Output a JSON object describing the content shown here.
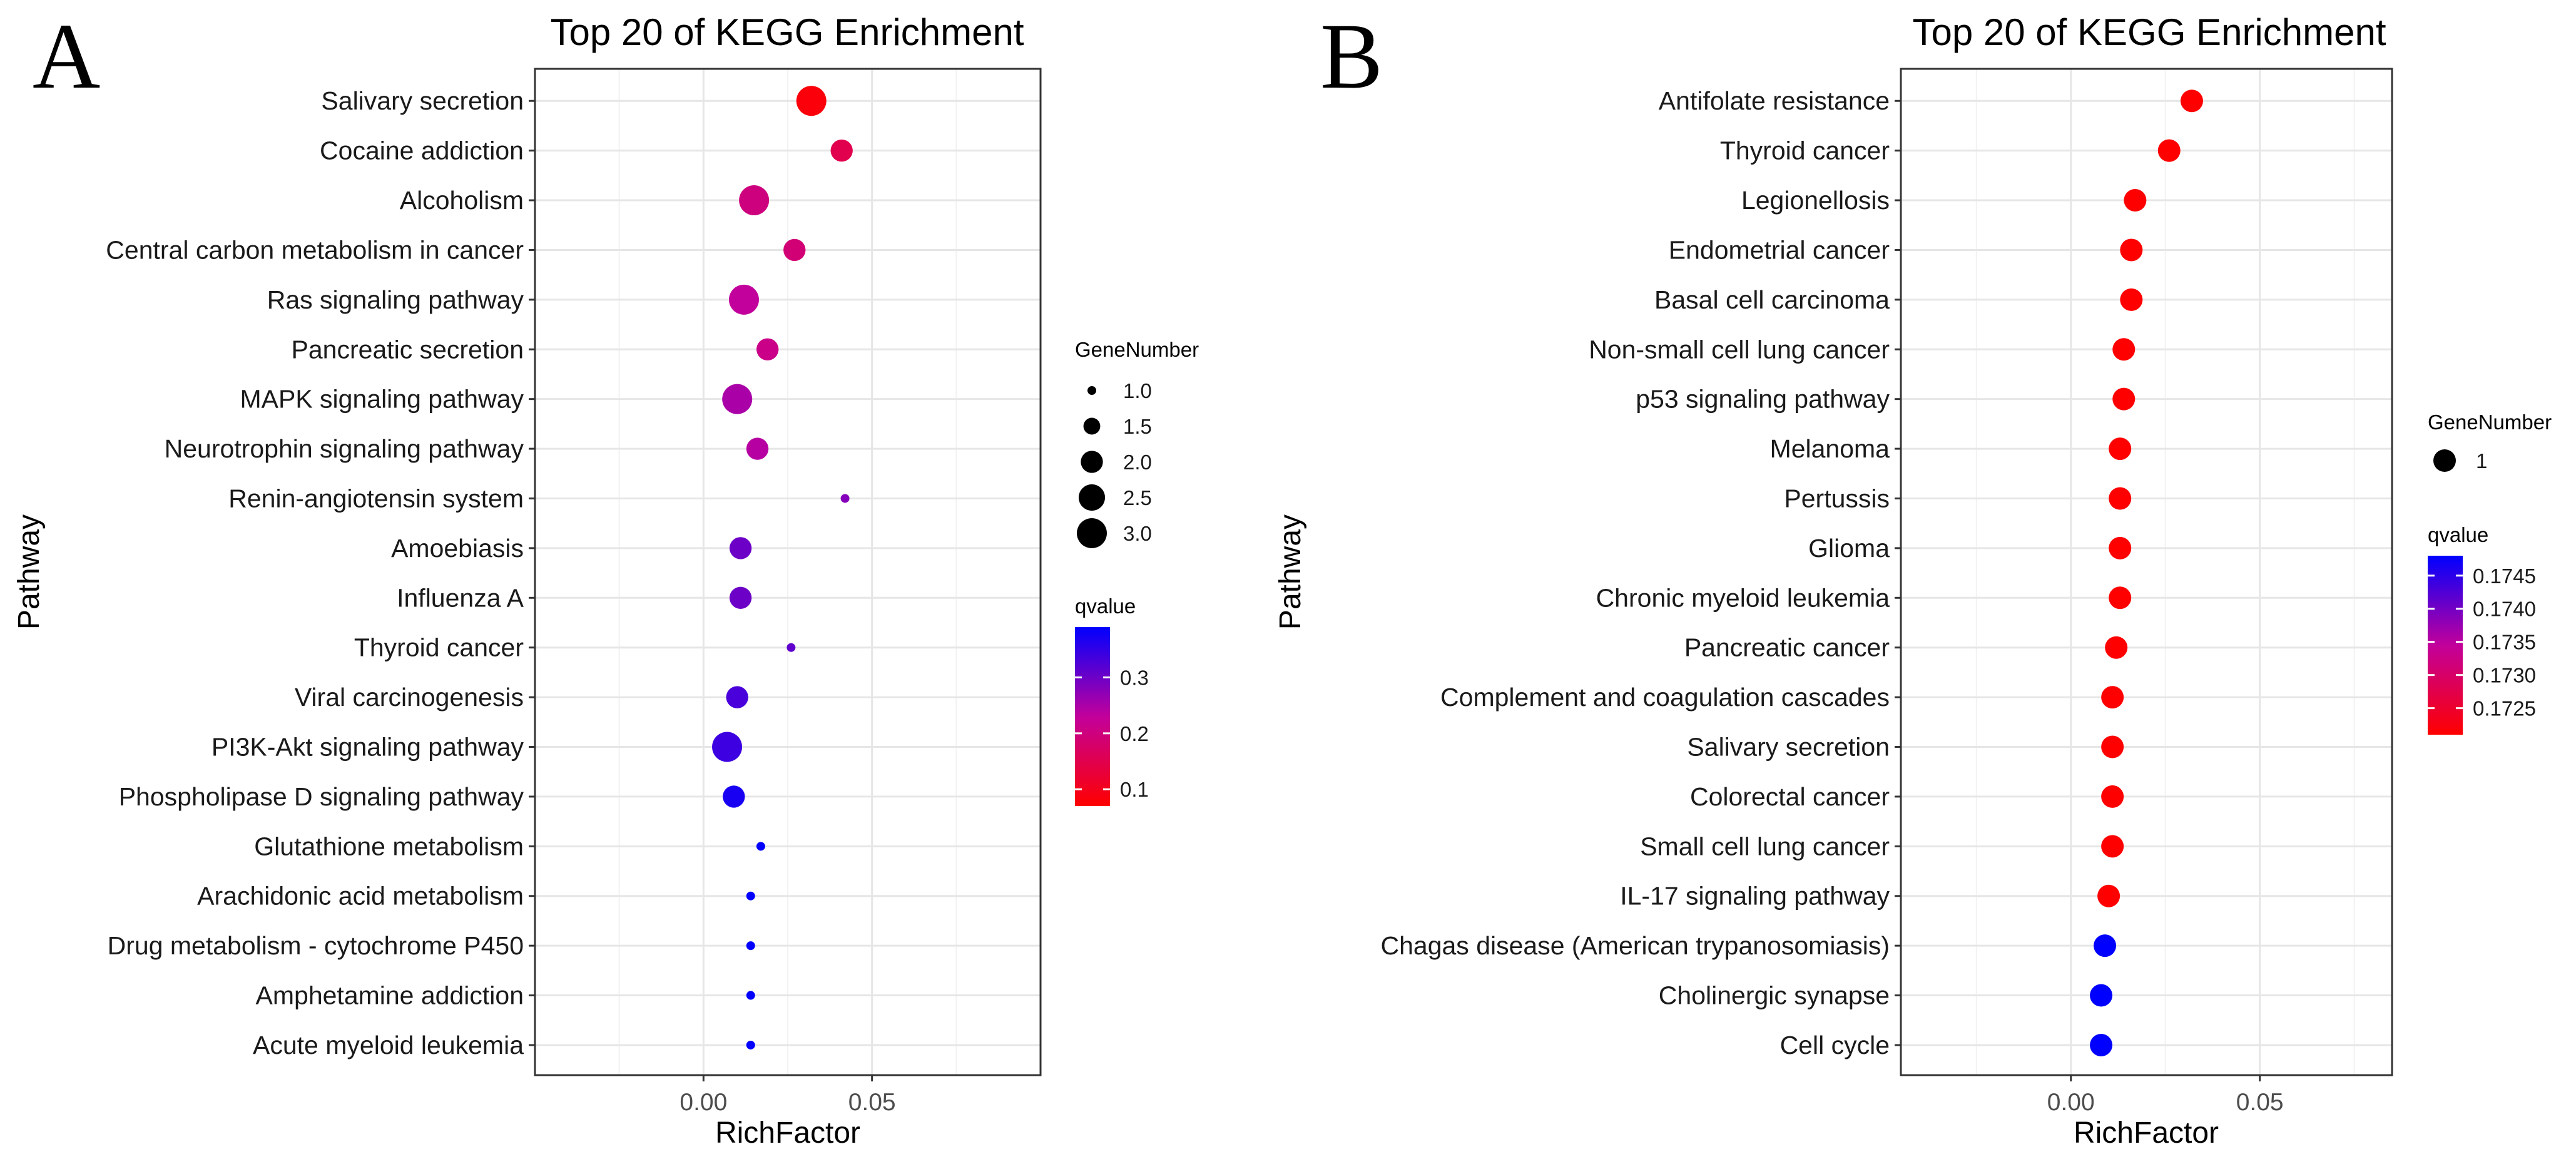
{
  "figure": {
    "panel_letters": [
      "A",
      "B"
    ]
  },
  "chart_data": [
    {
      "type": "scatter",
      "panel": "A",
      "title": "Top 20 of KEGG Enrichment",
      "xlabel": "RichFactor",
      "ylabel": "Pathway",
      "xlim": [
        -0.05,
        0.1
      ],
      "xticks": [
        0.0,
        0.05
      ],
      "xtick_labels": [
        "0.00",
        "0.05"
      ],
      "categories": [
        "Salivary secretion",
        "Cocaine addiction",
        "Alcoholism",
        "Central carbon metabolism in cancer",
        "Ras signaling pathway",
        "Pancreatic secretion",
        "MAPK signaling pathway",
        "Neurotrophin signaling pathway",
        "Renin-angiotensin system",
        "Amoebiasis",
        "Influenza A",
        "Thyroid cancer",
        "Viral carcinogenesis",
        "PI3K-Akt signaling pathway",
        "Phospholipase D signaling pathway",
        "Glutathione metabolism",
        "Arachidonic acid metabolism",
        "Drug metabolism - cytochrome P450",
        "Amphetamine addiction",
        "Acute myeloid leukemia"
      ],
      "rich_factor": [
        0.032,
        0.041,
        0.015,
        0.027,
        0.012,
        0.019,
        0.01,
        0.016,
        0.042,
        0.011,
        0.011,
        0.026,
        0.01,
        0.007,
        0.009,
        0.017,
        0.014,
        0.014,
        0.014,
        0.014
      ],
      "gene_number": [
        3,
        2,
        3,
        2,
        3,
        2,
        3,
        2,
        1,
        2,
        2,
        1,
        2,
        3,
        2,
        1,
        1,
        1,
        1,
        1
      ],
      "qvalue": [
        0.08,
        0.15,
        0.2,
        0.19,
        0.23,
        0.21,
        0.25,
        0.24,
        0.28,
        0.3,
        0.3,
        0.31,
        0.33,
        0.34,
        0.37,
        0.39,
        0.39,
        0.39,
        0.39,
        0.39
      ],
      "size_legend": {
        "title": "GeneNumber",
        "values": [
          1.0,
          1.5,
          2.0,
          2.5,
          3.0
        ],
        "labels": [
          "1.0",
          "1.5",
          "2.0",
          "2.5",
          "3.0"
        ]
      },
      "color_legend": {
        "title": "qvalue",
        "range": [
          0.07,
          0.39
        ],
        "ticks": [
          0.1,
          0.2,
          0.3
        ],
        "tick_labels": [
          "0.1",
          "0.2",
          "0.3"
        ],
        "low_color": "#ff0000",
        "high_color": "#0000ff"
      }
    },
    {
      "type": "scatter",
      "panel": "B",
      "title": "Top 20 of KEGG Enrichment",
      "xlabel": "RichFactor",
      "ylabel": "Pathway",
      "xlim": [
        -0.045,
        0.085
      ],
      "xticks": [
        0.0,
        0.05
      ],
      "xtick_labels": [
        "0.00",
        "0.05"
      ],
      "categories": [
        "Antifolate resistance",
        "Thyroid cancer",
        "Legionellosis",
        "Endometrial cancer",
        "Basal cell carcinoma",
        "Non-small cell lung cancer",
        "p53 signaling pathway",
        "Melanoma",
        "Pertussis",
        "Glioma",
        "Chronic myeloid leukemia",
        "Pancreatic cancer",
        "Complement and coagulation cascades",
        "Salivary secretion",
        "Colorectal cancer",
        "Small cell lung cancer",
        "IL-17 signaling pathway",
        "Chagas disease (American trypanosomiasis)",
        "Cholinergic synapse",
        "Cell cycle"
      ],
      "rich_factor": [
        0.032,
        0.026,
        0.017,
        0.016,
        0.016,
        0.014,
        0.014,
        0.013,
        0.013,
        0.013,
        0.013,
        0.012,
        0.011,
        0.011,
        0.011,
        0.011,
        0.01,
        0.009,
        0.008,
        0.008
      ],
      "gene_number": [
        1,
        1,
        1,
        1,
        1,
        1,
        1,
        1,
        1,
        1,
        1,
        1,
        1,
        1,
        1,
        1,
        1,
        1,
        1,
        1
      ],
      "qvalue": [
        0.1721,
        0.1721,
        0.1721,
        0.1721,
        0.1721,
        0.1721,
        0.1721,
        0.1721,
        0.1721,
        0.1721,
        0.1721,
        0.1721,
        0.1721,
        0.1721,
        0.1721,
        0.1721,
        0.1721,
        0.1748,
        0.1748,
        0.1748
      ],
      "size_legend": {
        "title": "GeneNumber",
        "values": [
          1
        ],
        "labels": [
          "1"
        ]
      },
      "color_legend": {
        "title": "qvalue",
        "range": [
          0.1721,
          0.1748
        ],
        "ticks": [
          0.1725,
          0.173,
          0.1735,
          0.174,
          0.1745
        ],
        "tick_labels": [
          "0.1725",
          "0.1730",
          "0.1735",
          "0.1740",
          "0.1745"
        ],
        "low_color": "#ff0000",
        "high_color": "#0000ff"
      }
    }
  ]
}
